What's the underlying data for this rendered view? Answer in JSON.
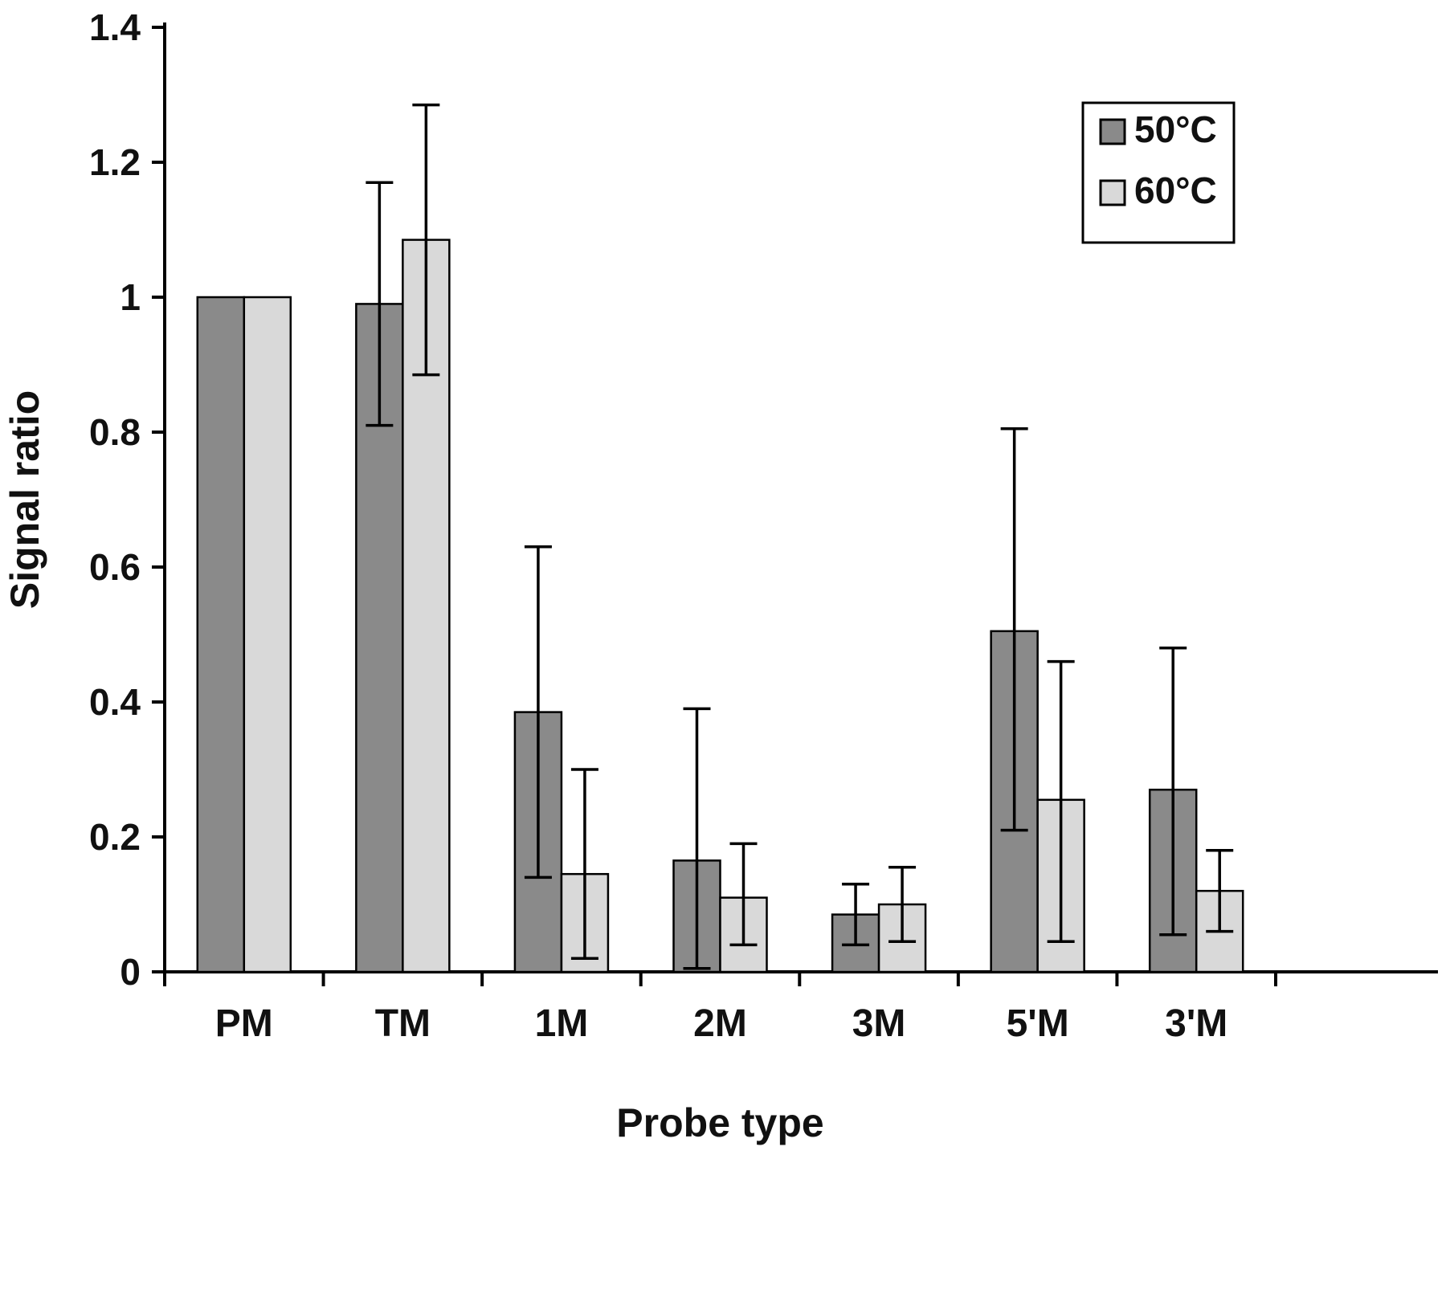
{
  "figure": {
    "background": "#ffffff",
    "axis_color": "#000000",
    "bar_border_color": "#000000"
  },
  "chart_data": {
    "type": "bar",
    "title": "",
    "xlabel": "Probe type",
    "ylabel": "Signal ratio",
    "ylim": [
      0,
      1.4
    ],
    "yticks": [
      0,
      0.2,
      0.4,
      0.6,
      0.8,
      1,
      1.2,
      1.4
    ],
    "ytick_labels": [
      "0",
      "0.2",
      "0.4",
      "0.6",
      "0.8",
      "1",
      "1.2",
      "1.4"
    ],
    "grid": false,
    "legend_position": "top-right",
    "categories": [
      "PM",
      "TM",
      "1M",
      "2M",
      "3M",
      "5'M",
      "3'M"
    ],
    "series": [
      {
        "name": "50°C",
        "color": "#8a8a8a",
        "values": [
          1.0,
          0.99,
          0.385,
          0.165,
          0.085,
          0.505,
          0.27
        ],
        "err_up": [
          0,
          0.18,
          0.245,
          0.225,
          0.045,
          0.3,
          0.21
        ],
        "err_down": [
          0,
          0.18,
          0.245,
          0.16,
          0.045,
          0.295,
          0.215
        ]
      },
      {
        "name": "60°C",
        "color": "#d9d9d9",
        "values": [
          1.0,
          1.085,
          0.145,
          0.11,
          0.1,
          0.255,
          0.12
        ],
        "err_up": [
          0,
          0.2,
          0.155,
          0.08,
          0.055,
          0.205,
          0.06
        ],
        "err_down": [
          0,
          0.2,
          0.125,
          0.07,
          0.055,
          0.21,
          0.06
        ]
      }
    ]
  }
}
